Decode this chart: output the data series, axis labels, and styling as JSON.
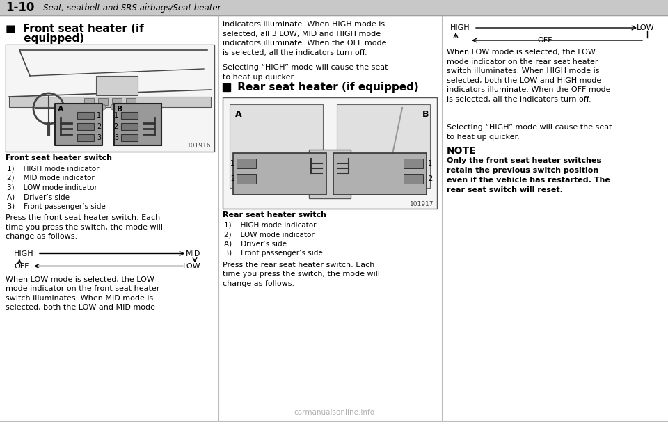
{
  "page_number": "1-10",
  "header_text": "Seat, seatbelt and SRS airbags/Seat heater",
  "bg_color": "#ffffff",
  "header_bg": "#c8c8c8",
  "section1_title_line1": "■  Front seat heater (if",
  "section1_title_line2": "     equipped)",
  "section2_title": "■  Rear seat heater (if equipped)",
  "front_switch_label": "Front seat heater switch",
  "front_items": [
    "1)    HIGH mode indicator",
    "2)    MID mode indicator",
    "3)    LOW mode indicator",
    "A)    Driver’s side",
    "B)    Front passenger’s side"
  ],
  "front_diagram_id": "101916",
  "rear_diagram_id": "101917",
  "rear_switch_label": "Rear seat heater switch",
  "rear_items": [
    "1)    HIGH mode indicator",
    "2)    LOW mode indicator",
    "A)    Driver’s side",
    "B)    Front passenger’s side"
  ],
  "col1_press_text": "Press the front seat heater switch. Each\ntime you press the switch, the mode will\nchange as follows.",
  "col1_when_text": "When LOW mode is selected, the LOW\nmode indicator on the front seat heater\nswitch illuminates. When MID mode is\nselected, both the LOW and MID mode",
  "col2_cont_text": "indicators illuminate. When HIGH mode is\nselected, all 3 LOW, MID and HIGH mode\nindicators illuminate. When the OFF mode\nis selected, all the indicators turn off.",
  "col2_high_text": "Selecting “HIGH” mode will cause the seat\nto heat up quicker.",
  "col2_press_text": "Press the rear seat heater switch. Each\ntime you press the switch, the mode will\nchange as follows.",
  "col3_when_text": "When LOW mode is selected, the LOW\nmode indicator on the rear seat heater\nswitch illuminates. When HIGH mode is\nselected, both the LOW and HIGH mode\nindicators illuminate. When the OFF mode\nis selected, all the indicators turn off.",
  "col3_high_text": "Selecting “HIGH” mode will cause the seat\nto heat up quicker.",
  "note_title": "NOTE",
  "note_text": "Only the front seat heater switches\nretain the previous switch position\neven if the vehicle has restarted. The\nrear seat switch will reset.",
  "watermark": "carmanualsonline.info"
}
